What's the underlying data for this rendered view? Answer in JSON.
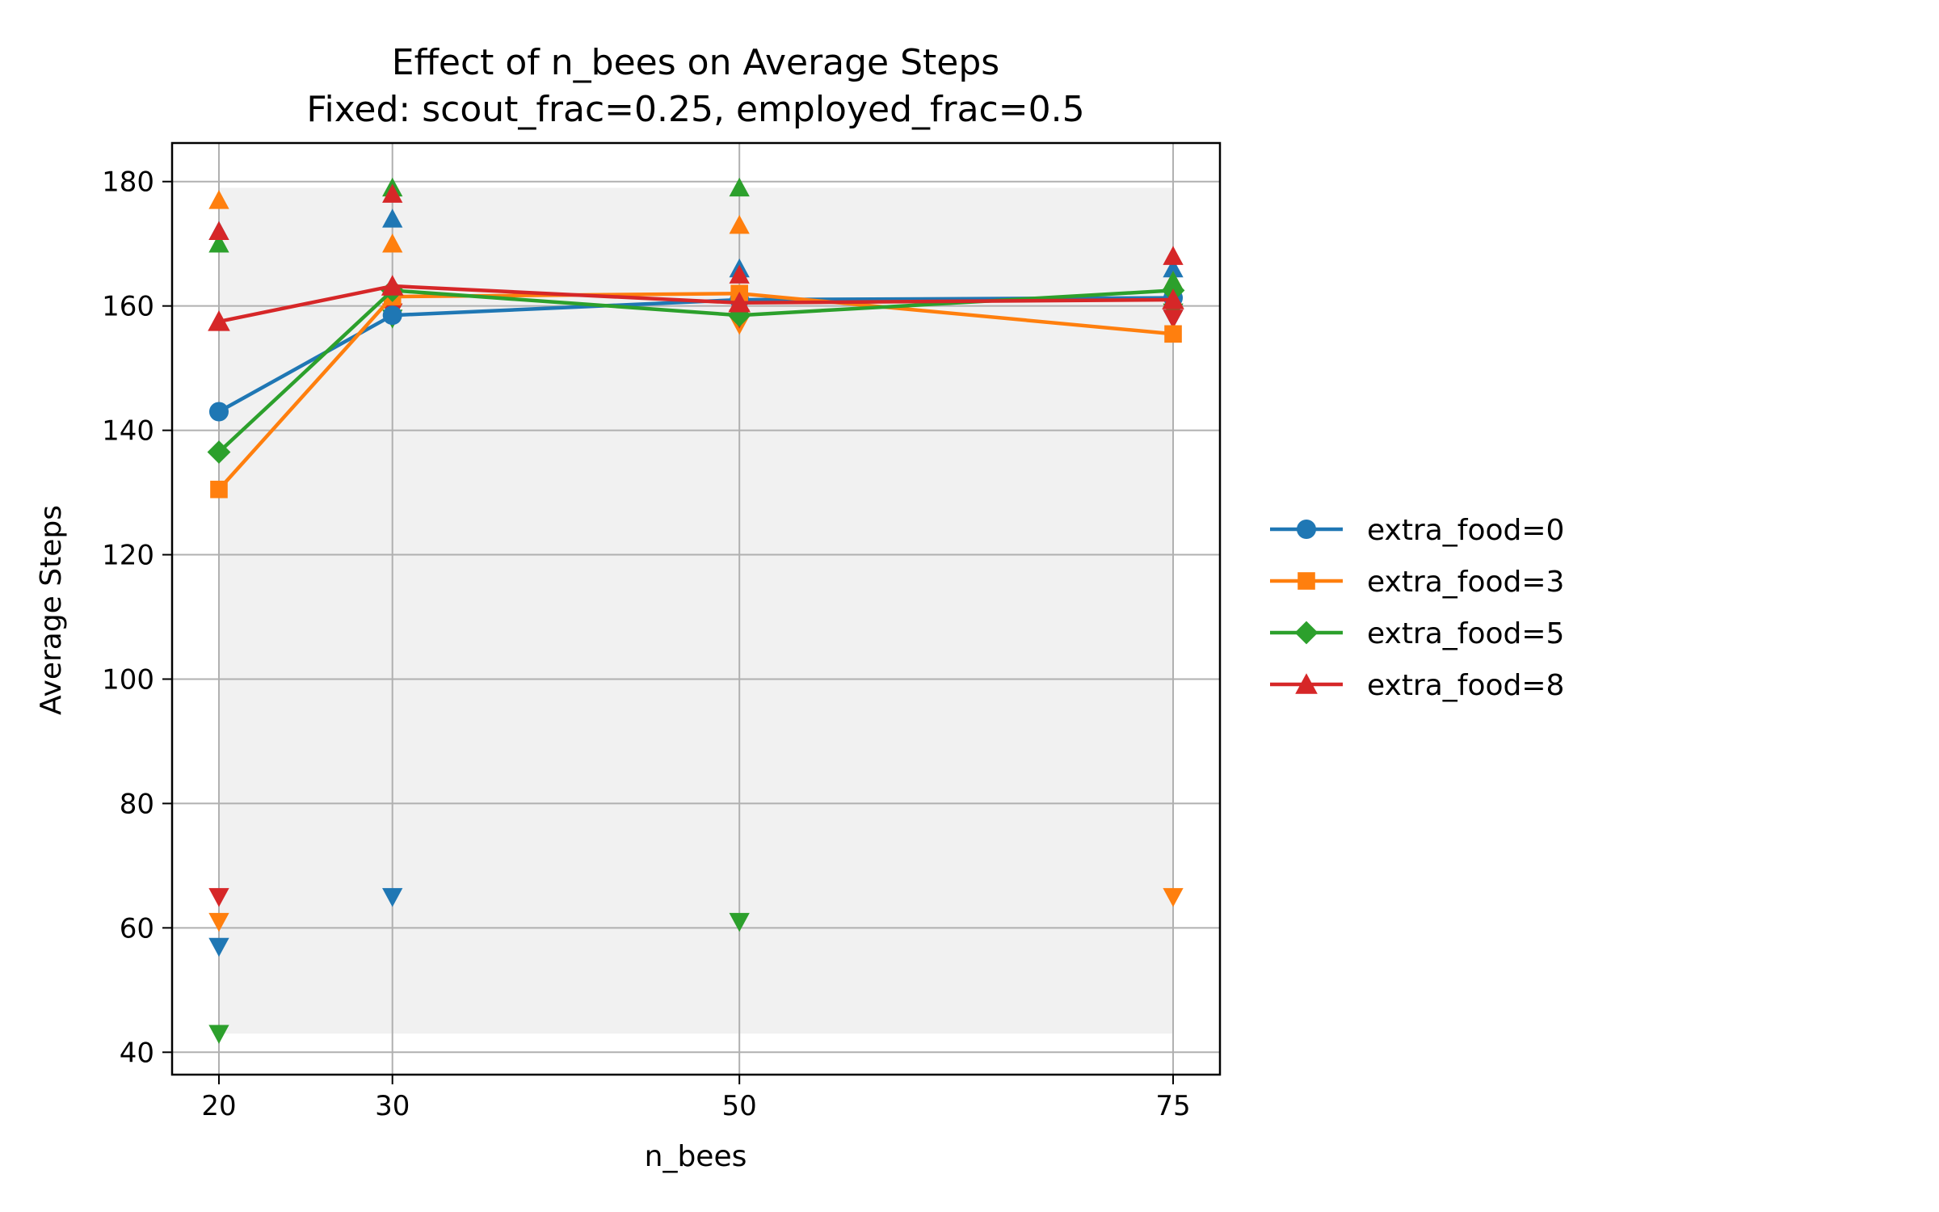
{
  "chart_data": {
    "type": "line",
    "title": "Effect of n_bees on Average Steps",
    "subtitle": "Fixed: scout_frac=0.25, employed_frac=0.5",
    "xlabel": "n_bees",
    "ylabel": "Average Steps",
    "x": [
      20,
      30,
      50,
      75
    ],
    "xticks": [
      20,
      30,
      50,
      75
    ],
    "yticks": [
      40,
      60,
      80,
      100,
      120,
      140,
      160,
      180
    ],
    "xlim": [
      17.3,
      77.7
    ],
    "ylim": [
      36.4,
      186.2
    ],
    "grid": true,
    "legend_position": "right",
    "shaded_band": {
      "x": [
        20,
        75
      ],
      "y": [
        43,
        179
      ]
    },
    "series": [
      {
        "name": "extra_food=0",
        "color": "#1f77b4",
        "marker": "circle",
        "values": [
          143,
          158.5,
          161,
          161.3
        ],
        "max": [
          172,
          174,
          166,
          166
        ],
        "min": [
          57,
          65,
          158,
          158
        ]
      },
      {
        "name": "extra_food=3",
        "color": "#ff7f0e",
        "marker": "square",
        "values": [
          130.5,
          161.5,
          162,
          155.5
        ],
        "max": [
          177,
          170,
          173,
          164
        ],
        "min": [
          61,
          159,
          157,
          65
        ]
      },
      {
        "name": "extra_food=5",
        "color": "#2ca02c",
        "marker": "diamond",
        "values": [
          136.5,
          162.5,
          158.5,
          162.5
        ],
        "max": [
          170,
          179,
          179,
          164
        ],
        "min": [
          43,
          158,
          61,
          159
        ]
      },
      {
        "name": "extra_food=8",
        "color": "#d62728",
        "marker": "triangle-up",
        "values": [
          157.5,
          163.2,
          160.5,
          161
        ],
        "max": [
          172,
          178,
          165,
          168
        ],
        "min": [
          65,
          159,
          158,
          158
        ]
      }
    ]
  }
}
